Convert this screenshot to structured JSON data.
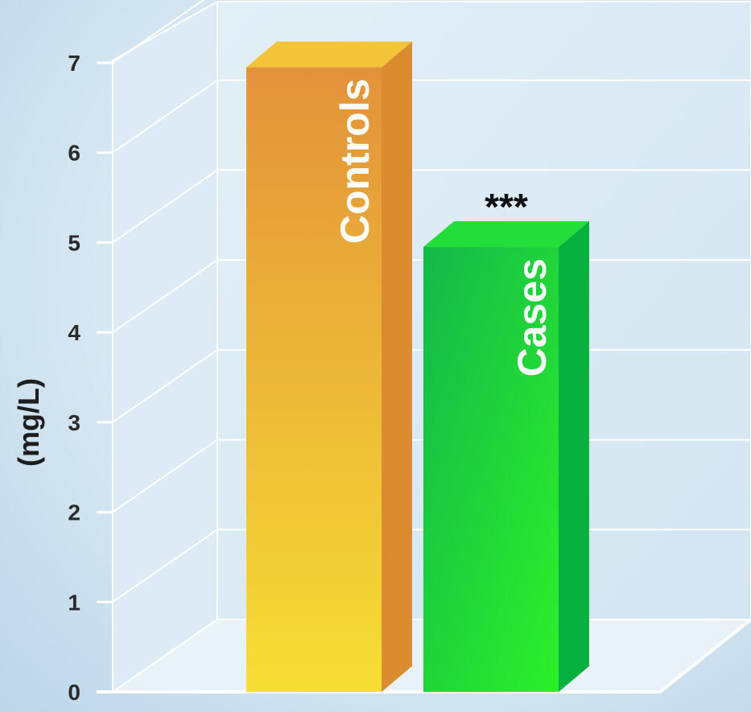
{
  "chart_data": {
    "type": "bar",
    "categories": [
      "Controls",
      "Cases"
    ],
    "values": [
      6.95,
      4.95
    ],
    "ylabel": "(mg/L)",
    "ylim": [
      0,
      7
    ],
    "yticks": [
      0,
      1,
      2,
      3,
      4,
      5,
      6,
      7
    ],
    "annotations": [
      {
        "category": "Cases",
        "text": "***"
      }
    ],
    "grid": true,
    "colors": {
      "Controls": {
        "front_top": "#e3923a",
        "front_bottom": "#f6de34",
        "side": "#dc8c30",
        "top": "#f3c43a"
      },
      "Cases": {
        "front_top": "#14b84a",
        "front_bottom": "#2cf02a",
        "side": "#08b040",
        "top": "#22dd3a"
      }
    }
  }
}
